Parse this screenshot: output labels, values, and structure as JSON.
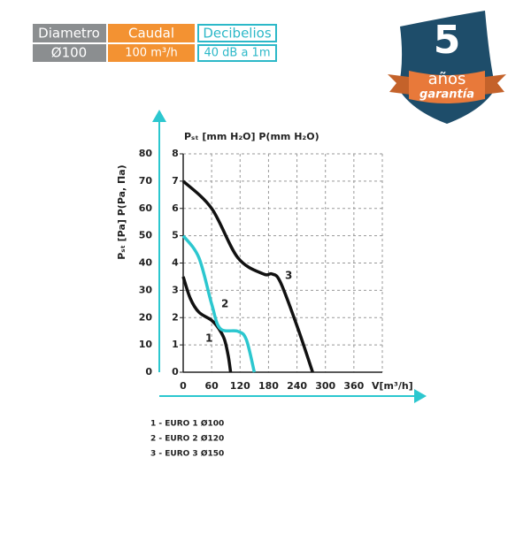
{
  "header": {
    "columns": [
      {
        "label": "Diametro",
        "value": "Ø100"
      },
      {
        "label": "Caudal",
        "value": "100 m³/h"
      },
      {
        "label": "Decibelios",
        "value": "40 dB a 1m"
      }
    ]
  },
  "badge": {
    "number": "5",
    "line1": "años",
    "line2": "garantía"
  },
  "chart_data": {
    "type": "line",
    "y_label": "Pₛₜ [Pa] P(Pa, Па)",
    "y2_label": "Pₛₜ [mm H₂O] P(mm H₂O)",
    "x_label": "V[m³/h]",
    "xlim": [
      0,
      420
    ],
    "xticks": [
      0,
      60,
      120,
      180,
      240,
      300,
      360
    ],
    "ylim": [
      0,
      80
    ],
    "yticks": [
      0,
      10,
      20,
      30,
      40,
      50,
      60,
      70,
      80
    ],
    "y2lim": [
      0,
      8
    ],
    "y2ticks": [
      0,
      1,
      2,
      3,
      4,
      5,
      6,
      7,
      8
    ],
    "grid": true,
    "series": [
      {
        "name": "1 - EURO 1 Ø100",
        "curve_label": "1",
        "color": "#111111",
        "x": [
          0,
          15,
          33,
          60,
          75,
          87,
          95,
          100
        ],
        "values": [
          35,
          27,
          22,
          19,
          16,
          12,
          6,
          0
        ]
      },
      {
        "name": "2 - EURO 2 Ø120",
        "curve_label": "2",
        "color": "#2cc7cf",
        "x": [
          0,
          33,
          60,
          78,
          115,
          133,
          150
        ],
        "values": [
          50,
          42,
          25,
          16,
          15,
          12,
          0
        ]
      },
      {
        "name": "3 - EURO 3 Ø150",
        "curve_label": "3",
        "color": "#111111",
        "x": [
          0,
          60,
          115,
          169,
          187,
          205,
          242,
          273
        ],
        "values": [
          70,
          60,
          42,
          36,
          36,
          33,
          16,
          0
        ]
      }
    ]
  }
}
